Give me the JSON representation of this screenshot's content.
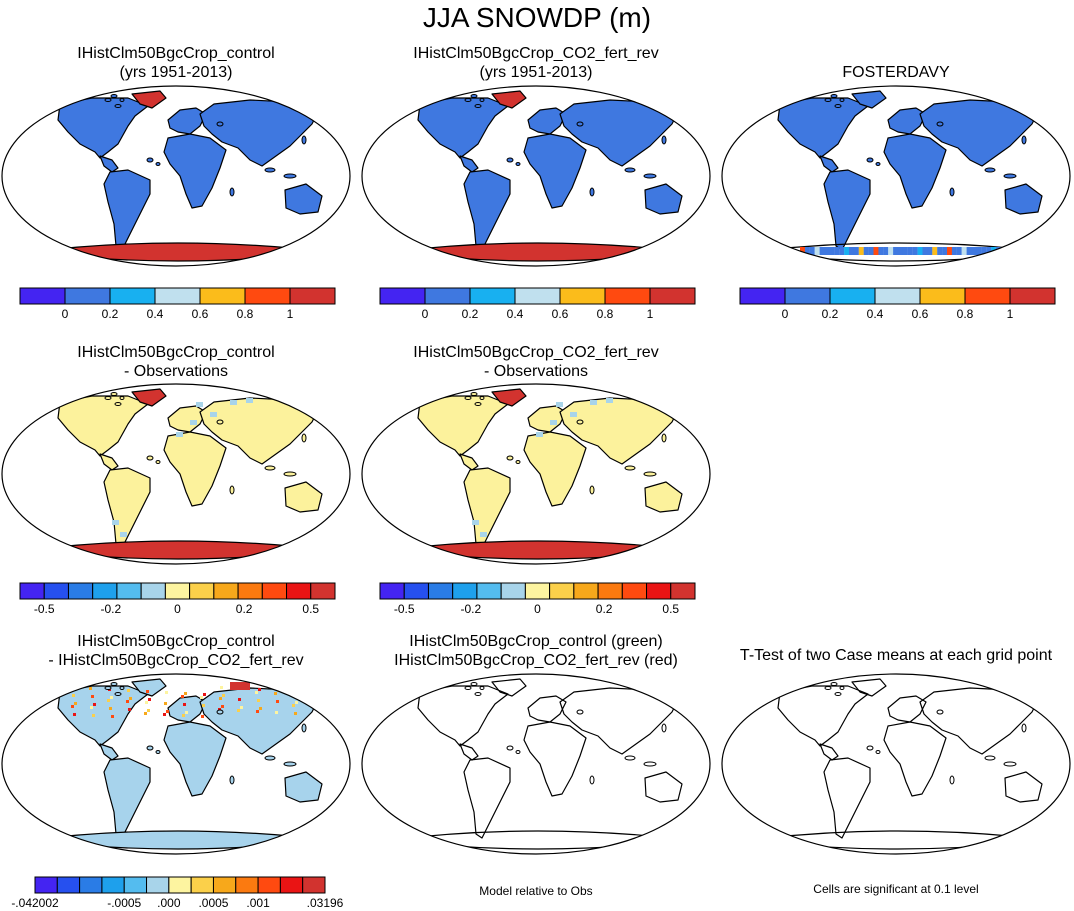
{
  "title": "JJA SNOWDP (m)",
  "colors": {
    "land_blue": "#3f78e0",
    "red": "#d2332f",
    "light_yellow": "#fcf29c",
    "light_blue": "#a7d3ec",
    "ocean": "#ffffff",
    "outline": "#000000"
  },
  "scales": {
    "abs": {
      "colors": [
        "#4424f2",
        "#3f78e0",
        "#18b0f0",
        "#c0e0ee",
        "#fbbc1b",
        "#ff4a10",
        "#d2332f"
      ],
      "labels": [
        "0",
        "0.2",
        "0.4",
        "0.6",
        "0.8",
        "1"
      ]
    },
    "diff": {
      "colors": [
        "#4424f2",
        "#2650ef",
        "#2a7ce6",
        "#1ea0ec",
        "#54bcef",
        "#a8d4ea",
        "#fdf4a0",
        "#fbd04a",
        "#f7a81b",
        "#fb7a10",
        "#ff4a10",
        "#ea1414",
        "#d2332f"
      ],
      "labels": [
        "-0.5",
        "-0.2",
        "0",
        "0.2",
        "0.5"
      ]
    },
    "small": {
      "colors": [
        "#4424f2",
        "#2650ef",
        "#2a7ce6",
        "#1ea0ec",
        "#54bcef",
        "#a8d4ea",
        "#fdf4a0",
        "#fbd04a",
        "#f7a81b",
        "#fb7a10",
        "#ff4a10",
        "#ea1414",
        "#d2332f"
      ],
      "labels": [
        "-.042002",
        "-.0005",
        ".000",
        ".0005",
        ".001",
        ".03196"
      ]
    }
  },
  "chart_data": [
    {
      "type": "heatmap",
      "title": "IHistClm50BgcCrop_control",
      "subtitle": "(yrs 1951-2013)",
      "colorbar_labels": [
        "0",
        "0.2",
        "0.4",
        "0.6",
        "0.8",
        "1"
      ]
    },
    {
      "type": "heatmap",
      "title": "IHistClm50BgcCrop_CO2_fert_rev",
      "subtitle": "(yrs 1951-2013)",
      "colorbar_labels": [
        "0",
        "0.2",
        "0.4",
        "0.6",
        "0.8",
        "1"
      ]
    },
    {
      "type": "heatmap",
      "title": "FOSTERDAVY",
      "subtitle": "",
      "colorbar_labels": [
        "0",
        "0.2",
        "0.4",
        "0.6",
        "0.8",
        "1"
      ]
    },
    {
      "type": "heatmap",
      "title": "IHistClm50BgcCrop_control",
      "subtitle": "- Observations",
      "colorbar_labels": [
        "-0.5",
        "-0.2",
        "0",
        "0.2",
        "0.5"
      ]
    },
    {
      "type": "heatmap",
      "title": "IHistClm50BgcCrop_CO2_fert_rev",
      "subtitle": "- Observations",
      "colorbar_labels": [
        "-0.5",
        "-0.2",
        "0",
        "0.2",
        "0.5"
      ]
    },
    {
      "type": "heatmap",
      "title": "IHistClm50BgcCrop_control",
      "subtitle": "- IHistClm50BgcCrop_CO2_fert_rev",
      "colorbar_labels": [
        "-.042002",
        "-.0005",
        ".000",
        ".0005",
        ".001",
        ".03196"
      ]
    },
    {
      "type": "heatmap",
      "title": "IHistClm50BgcCrop_control (green)",
      "subtitle": "IHistClm50BgcCrop_CO2_fert_rev (red)",
      "note": "Model relative to Obs"
    },
    {
      "type": "heatmap",
      "title": "T-Test of two Case means at each grid point",
      "subtitle": "",
      "note": "Cells are significant at 0.1 level"
    }
  ]
}
